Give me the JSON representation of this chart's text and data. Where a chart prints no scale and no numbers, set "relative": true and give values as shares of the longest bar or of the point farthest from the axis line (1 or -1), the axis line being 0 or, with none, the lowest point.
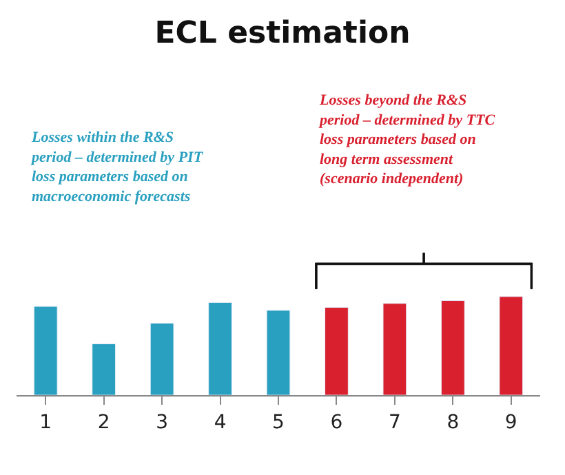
{
  "chart_data": {
    "type": "bar",
    "title": "ECL estimation",
    "relative": true,
    "categories": [
      "1",
      "2",
      "3",
      "4",
      "5",
      "6",
      "7",
      "8",
      "9"
    ],
    "values": [
      0.9,
      0.52,
      0.73,
      0.94,
      0.86,
      0.89,
      0.93,
      0.96,
      1
    ],
    "colors": [
      "#2aa0c0",
      "#2aa0c0",
      "#2aa0c0",
      "#2aa0c0",
      "#2aa0c0",
      "#d9202f",
      "#d9202f",
      "#d9202f",
      "#d9202f"
    ],
    "annotations": [
      "Losses within the R&S\nperiod – determined by PIT\nloss parameters based on\nmacroeconomic forecasts",
      "Losses beyond the R&S\nperiod – determined by TTC\nloss parameters based on\nlong term assessment\n(scenario independent)"
    ],
    "legend": false
  }
}
